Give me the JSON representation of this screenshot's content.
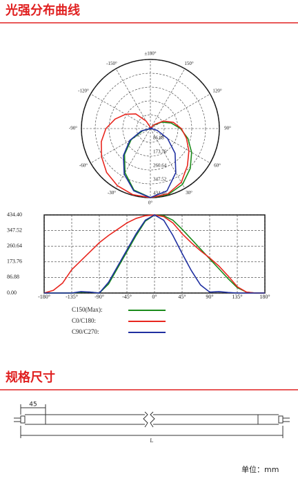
{
  "page": {
    "sections": [
      "光强分布曲线",
      "规格尺寸"
    ],
    "drawing": {
      "dimension": "45",
      "length": "L",
      "unit": "单位：mm"
    }
  },
  "chart_data": [
    {
      "type": "polar",
      "theta": [
        -180,
        -165,
        -150,
        -135,
        -120,
        -105,
        -90,
        -75,
        -60,
        -45,
        -30,
        -15,
        0,
        15,
        30,
        45,
        60,
        75,
        90,
        105,
        120,
        135,
        150,
        165,
        180
      ],
      "rlim": [
        0,
        434.4
      ],
      "rticks": [
        {
          "value": 86.88,
          "label": "86.88"
        },
        {
          "value": 173.76,
          "label": "173.76"
        },
        {
          "value": 260.64,
          "label": "260.64"
        },
        {
          "value": 347.52,
          "label": "347.52"
        },
        {
          "value": 434.4,
          "label": "434.40"
        }
      ],
      "angle_ticks": [
        {
          "value": 180,
          "label": "±180°"
        },
        {
          "value": -150,
          "label": "-150°"
        },
        {
          "value": -120,
          "label": "-120°"
        },
        {
          "value": -90,
          "label": "-90°"
        },
        {
          "value": -60,
          "label": "-60°"
        },
        {
          "value": -30,
          "label": "-30°"
        },
        {
          "value": 0,
          "label": "0°"
        },
        {
          "value": 30,
          "label": "30°"
        },
        {
          "value": 60,
          "label": "60°"
        },
        {
          "value": 90,
          "label": "90°"
        },
        {
          "value": 120,
          "label": "120°"
        },
        {
          "value": 150,
          "label": "150°"
        }
      ],
      "grid": true,
      "series": [
        {
          "name": "C150(Max):",
          "color": "#1a8a1a",
          "values": [
            0,
            0,
            0,
            0,
            5,
            5,
            0,
            50,
            140,
            230,
            320,
            400,
            434,
            430,
            405,
            355,
            300,
            245,
            190,
            135,
            80,
            30,
            5,
            0,
            0
          ]
        },
        {
          "name": "C0/C180:",
          "color": "#e8261e",
          "values": [
            0,
            15,
            55,
            130,
            180,
            230,
            280,
            320,
            355,
            390,
            415,
            430,
            434,
            425,
            390,
            330,
            280,
            235,
            195,
            150,
            95,
            35,
            5,
            0,
            0
          ]
        },
        {
          "name": "C90/C270:",
          "color": "#1f2fa0",
          "values": [
            0,
            0,
            0,
            0,
            8,
            5,
            0,
            60,
            150,
            240,
            330,
            405,
            434,
            405,
            320,
            220,
            125,
            45,
            5,
            8,
            3,
            0,
            0,
            0,
            0
          ]
        }
      ]
    },
    {
      "type": "line",
      "x": [
        -180,
        -165,
        -150,
        -135,
        -120,
        -105,
        -90,
        -75,
        -60,
        -45,
        -30,
        -15,
        0,
        15,
        30,
        45,
        60,
        75,
        90,
        105,
        120,
        135,
        150,
        165,
        180
      ],
      "xlim": [
        -180,
        180
      ],
      "xticks": [
        {
          "value": -180,
          "label": "-180°"
        },
        {
          "value": -135,
          "label": "-135°"
        },
        {
          "value": -90,
          "label": "-90°"
        },
        {
          "value": -45,
          "label": "-45°"
        },
        {
          "value": 0,
          "label": "0°"
        },
        {
          "value": 45,
          "label": "45°"
        },
        {
          "value": 90,
          "label": "90°"
        },
        {
          "value": 135,
          "label": "135°"
        },
        {
          "value": 180,
          "label": "180°"
        }
      ],
      "ylim": [
        0,
        434.4
      ],
      "yticks": [
        {
          "value": 0,
          "label": "0.00"
        },
        86.88,
        173.76,
        260.64,
        347.52,
        {
          "value": 434.4,
          "label": "434.40"
        }
      ],
      "grid": true,
      "series": [
        {
          "name": "C150(Max):",
          "color": "#1a8a1a",
          "values": [
            0,
            0,
            0,
            0,
            5,
            5,
            0,
            50,
            140,
            230,
            320,
            400,
            434,
            430,
            405,
            355,
            300,
            245,
            190,
            135,
            80,
            30,
            5,
            0,
            0
          ]
        },
        {
          "name": "C0/C180:",
          "color": "#e8261e",
          "values": [
            0,
            15,
            55,
            130,
            180,
            230,
            280,
            320,
            355,
            390,
            415,
            430,
            434,
            425,
            390,
            330,
            280,
            235,
            195,
            150,
            95,
            35,
            5,
            0,
            0
          ]
        },
        {
          "name": "C90/C270:",
          "color": "#1f2fa0",
          "values": [
            0,
            0,
            0,
            0,
            8,
            5,
            0,
            60,
            150,
            240,
            330,
            405,
            434,
            405,
            320,
            220,
            125,
            45,
            5,
            8,
            3,
            0,
            0,
            0,
            0
          ]
        }
      ]
    }
  ]
}
